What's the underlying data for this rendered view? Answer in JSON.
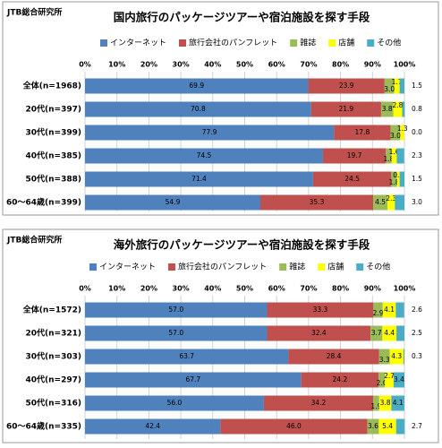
{
  "chart_data": [
    {
      "type": "stacked-bar-horizontal",
      "source": "JTB総合研究所",
      "title": "国内旅行のパッケージツアーや宿泊施設を探す手段",
      "categories": [
        "全体(n=1968)",
        "20代(n=397)",
        "30代(n=399)",
        "40代(n=385)",
        "50代(n=388)",
        "60～64歳(n=399)"
      ],
      "series": [
        {
          "name": "インターネット",
          "color": "#4f81bd",
          "values": [
            69.9,
            70.8,
            77.9,
            74.5,
            71.4,
            54.9
          ],
          "value_labels": [
            "69.9",
            "70.8",
            "77.9",
            "74.5",
            "71.4",
            "54.9"
          ]
        },
        {
          "name": "旅行会社のパンフレット",
          "color": "#c0504d",
          "values": [
            23.9,
            21.9,
            17.8,
            19.7,
            24.5,
            35.3
          ],
          "value_labels": [
            "23.9",
            "21.9",
            "17.8",
            "19.7",
            "24.5",
            "35.3"
          ]
        },
        {
          "name": "雑誌",
          "color": "#9bbb59",
          "values": [
            3.0,
            3.8,
            3.0,
            1.8,
            1.8,
            4.5
          ],
          "value_labels": [
            "3.0",
            "3.8",
            "3.0",
            "1.8",
            "1.8",
            "4.5"
          ]
        },
        {
          "name": "店舗",
          "color": "#ffff00",
          "values": [
            1.7,
            2.8,
            1.3,
            1.6,
            0.8,
            2.3
          ],
          "value_labels": [
            "1.7",
            "2.8",
            "1.3",
            "1.6",
            "0.8",
            "2.3"
          ]
        },
        {
          "name": "その他",
          "color": "#4bacc6",
          "values": [
            1.5,
            0.8,
            0.0,
            2.3,
            1.5,
            3.0
          ],
          "value_labels": [
            "1.5",
            "0.8",
            "0.0",
            "2.3",
            "1.5",
            "3.0"
          ]
        }
      ],
      "xlim": [
        0,
        100
      ],
      "xticks": [
        {
          "value": 0,
          "label": "0%"
        },
        {
          "value": 10,
          "label": "10%"
        },
        {
          "value": 20,
          "label": "20%"
        },
        {
          "value": 30,
          "label": "30%"
        },
        {
          "value": 40,
          "label": "40%"
        },
        {
          "value": 50,
          "label": "50%"
        },
        {
          "value": 60,
          "label": "60%"
        },
        {
          "value": 70,
          "label": "70%"
        },
        {
          "value": 80,
          "label": "80%"
        },
        {
          "value": 90,
          "label": "90%"
        },
        {
          "value": 100,
          "label": "100%"
        }
      ],
      "grid": true,
      "legend": "top"
    },
    {
      "type": "stacked-bar-horizontal",
      "source": "JTB総合研究所",
      "title": "海外旅行のパッケージツアーや宿泊施設を探す手段",
      "categories": [
        "全体(n=1572)",
        "20代(n=321)",
        "30代(n=303)",
        "40代(n=297)",
        "50代(n=316)",
        "60～64歳(n=335)"
      ],
      "series": [
        {
          "name": "インターネット",
          "color": "#4f81bd",
          "values": [
            57.0,
            57.0,
            63.7,
            67.7,
            56.0,
            42.4
          ],
          "value_labels": [
            "57.0",
            "57.0",
            "63.7",
            "67.7",
            "56.0",
            "42.4"
          ]
        },
        {
          "name": "旅行会社のパンフレット",
          "color": "#c0504d",
          "values": [
            33.3,
            32.4,
            28.4,
            24.2,
            34.2,
            46.0
          ],
          "value_labels": [
            "33.3",
            "32.4",
            "28.4",
            "24.2",
            "34.2",
            "46.0"
          ]
        },
        {
          "name": "雑誌",
          "color": "#9bbb59",
          "values": [
            2.9,
            3.7,
            3.3,
            2.0,
            1.9,
            3.6
          ],
          "value_labels": [
            "2.9",
            "3.7",
            "3.3",
            "2.0",
            "1.9",
            "3.6"
          ]
        },
        {
          "name": "店舗",
          "color": "#ffff00",
          "values": [
            4.1,
            4.4,
            4.3,
            2.7,
            3.8,
            5.4
          ],
          "value_labels": [
            "4.1",
            "4.4",
            "4.3",
            "2.7",
            "3.8",
            "5.4"
          ]
        },
        {
          "name": "その他",
          "color": "#4bacc6",
          "values": [
            2.6,
            2.5,
            0.3,
            3.4,
            4.1,
            2.7
          ],
          "value_labels": [
            "2.6",
            "2.5",
            "0.3",
            "3.4",
            "4.1",
            "2.7"
          ]
        }
      ],
      "xlim": [
        0,
        100
      ],
      "xticks": [
        {
          "value": 0,
          "label": "0%"
        },
        {
          "value": 10,
          "label": "10%"
        },
        {
          "value": 20,
          "label": "20%"
        },
        {
          "value": 30,
          "label": "30%"
        },
        {
          "value": 40,
          "label": "40%"
        },
        {
          "value": 50,
          "label": "50%"
        },
        {
          "value": 60,
          "label": "60%"
        },
        {
          "value": 70,
          "label": "70%"
        },
        {
          "value": 80,
          "label": "80%"
        },
        {
          "value": 90,
          "label": "90%"
        },
        {
          "value": 100,
          "label": "100%"
        }
      ],
      "grid": true,
      "legend": "top"
    }
  ]
}
